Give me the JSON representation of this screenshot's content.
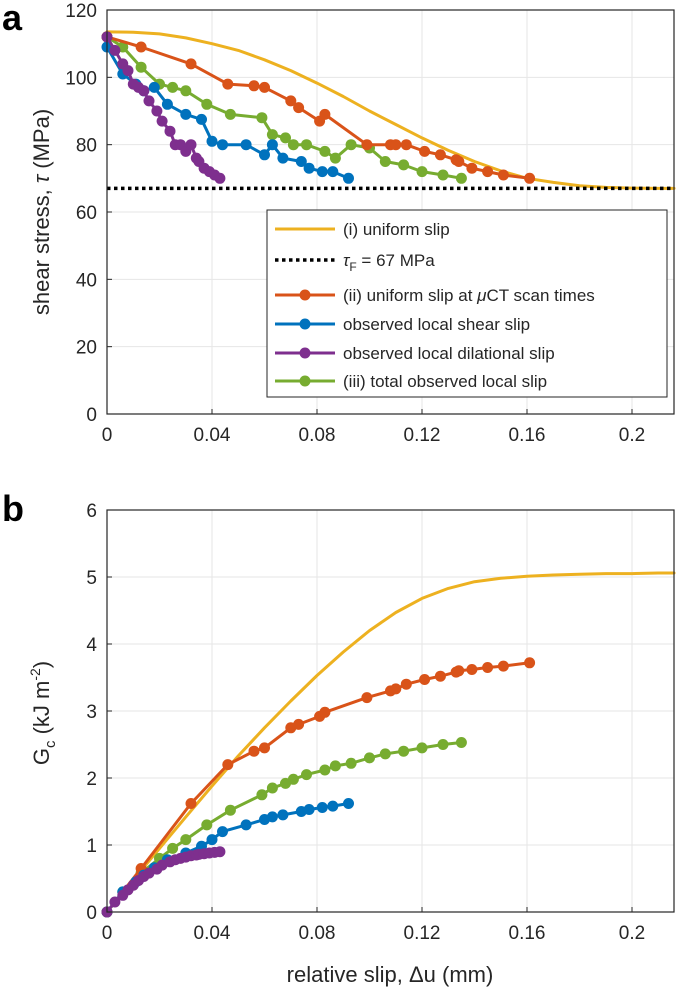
{
  "figure": {
    "panels": [
      "a",
      "b"
    ]
  },
  "colors": {
    "uniform": "#EDB120",
    "friction": "#000000",
    "uniform_ct": "#D95319",
    "shear": "#0072BD",
    "dilational": "#7E2F8E",
    "total": "#77AC30",
    "grid": "#e6e6e6",
    "axis": "#262626"
  },
  "chart_data": [
    {
      "panel": "a",
      "type": "line",
      "xlabel": "",
      "ylabel_text": "shear stress, ",
      "ylabel_symbol": "τ",
      "ylabel_unit": " (MPa)",
      "xlim": [
        0,
        0.216
      ],
      "ylim": [
        0,
        120
      ],
      "xticks": [
        0,
        0.04,
        0.08,
        0.12,
        0.16,
        0.2
      ],
      "xtick_labels": [
        "0",
        "0.04",
        "0.08",
        "0.12",
        "0.16",
        "0.2"
      ],
      "yticks": [
        0,
        20,
        40,
        60,
        80,
        100,
        120
      ],
      "ytick_labels": [
        "0",
        "20",
        "40",
        "60",
        "80",
        "100",
        "120"
      ],
      "grid": true,
      "legend": {
        "placement": "bottom-right",
        "entries": [
          {
            "series": "uniform",
            "label": "(i) uniform slip"
          },
          {
            "series": "friction",
            "label_symbol": "τ",
            "label_sub": "F",
            "label_rest": " = 67 MPa"
          },
          {
            "series": "uniform_ct",
            "label_pre": "(ii) uniform slip at ",
            "label_mu": "μ",
            "label_post": "CT scan times"
          },
          {
            "series": "shear",
            "label": "observed local shear slip"
          },
          {
            "series": "dilational",
            "label": "observed local dilational slip"
          },
          {
            "series": "total",
            "label": "(iii) total observed local slip"
          }
        ]
      },
      "series": {
        "uniform": {
          "style": "line",
          "x": [
            0,
            0.01,
            0.02,
            0.03,
            0.04,
            0.05,
            0.06,
            0.07,
            0.08,
            0.09,
            0.1,
            0.11,
            0.12,
            0.13,
            0.14,
            0.15,
            0.16,
            0.17,
            0.18,
            0.19,
            0.2,
            0.21,
            0.216
          ],
          "y": [
            113.5,
            113.4,
            112.9,
            111.7,
            110.0,
            108.0,
            105.2,
            102.0,
            98.3,
            94.3,
            90.0,
            86.0,
            82.0,
            78.3,
            75.0,
            72.2,
            70.0,
            68.8,
            67.8,
            67.3,
            67.1,
            67.0,
            67.0
          ]
        },
        "friction": {
          "style": "dotted",
          "x": [
            0,
            0.216
          ],
          "y": [
            67,
            67
          ]
        },
        "uniform_ct": {
          "style": "line-marker",
          "x": [
            0,
            0.013,
            0.032,
            0.046,
            0.056,
            0.06,
            0.07,
            0.073,
            0.081,
            0.083,
            0.099,
            0.108,
            0.11,
            0.114,
            0.121,
            0.127,
            0.133,
            0.134,
            0.139,
            0.145,
            0.151,
            0.161
          ],
          "y": [
            112,
            109,
            104,
            98,
            97.5,
            97,
            93,
            91,
            87,
            89,
            80,
            80,
            80,
            80,
            78,
            77,
            75.5,
            75,
            73,
            72,
            71,
            70
          ]
        },
        "shear": {
          "style": "line-marker",
          "x": [
            0,
            0.006,
            0.011,
            0.014,
            0.018,
            0.023,
            0.03,
            0.036,
            0.04,
            0.044,
            0.053,
            0.06,
            0.063,
            0.067,
            0.074,
            0.077,
            0.082,
            0.086,
            0.092
          ],
          "y": [
            109,
            101,
            98,
            96,
            97,
            92,
            89,
            87.5,
            81,
            80,
            80,
            77,
            80,
            76,
            75,
            73,
            72,
            72,
            70
          ]
        },
        "dilational": {
          "style": "line-marker",
          "x": [
            0,
            0.003,
            0.006,
            0.008,
            0.01,
            0.012,
            0.014,
            0.016,
            0.019,
            0.021,
            0.024,
            0.026,
            0.028,
            0.03,
            0.032,
            0.034,
            0.035,
            0.037,
            0.039,
            0.041,
            0.043
          ],
          "y": [
            112,
            108,
            104,
            102,
            98,
            97,
            96,
            93,
            90,
            87,
            84,
            80,
            80,
            78,
            80,
            76,
            75,
            73,
            72,
            71,
            70
          ]
        },
        "total": {
          "style": "line-marker",
          "x": [
            0,
            0.006,
            0.013,
            0.02,
            0.025,
            0.03,
            0.038,
            0.047,
            0.059,
            0.063,
            0.068,
            0.071,
            0.076,
            0.083,
            0.087,
            0.093,
            0.1,
            0.106,
            0.113,
            0.12,
            0.128,
            0.135
          ],
          "y": [
            112,
            109,
            103,
            98,
            97,
            96,
            92,
            89,
            88,
            83,
            82,
            80,
            80,
            78,
            76,
            80,
            79,
            75,
            74,
            72,
            71,
            70
          ]
        }
      }
    },
    {
      "panel": "b",
      "type": "line",
      "xlabel_text": "relative slip, ",
      "xlabel_symbol": "Δ",
      "xlabel_unit": "u (mm)",
      "ylabel_main": "G",
      "ylabel_sub": "c",
      "ylabel_unit": " (kJ m",
      "ylabel_sup": "-2",
      "ylabel_close": ")",
      "xlim": [
        0,
        0.216
      ],
      "ylim": [
        0,
        6
      ],
      "xticks": [
        0,
        0.04,
        0.08,
        0.12,
        0.16,
        0.2
      ],
      "xtick_labels": [
        "0",
        "0.04",
        "0.08",
        "0.12",
        "0.16",
        "0.2"
      ],
      "yticks": [
        0,
        1,
        2,
        3,
        4,
        5,
        6
      ],
      "ytick_labels": [
        "0",
        "1",
        "2",
        "3",
        "4",
        "5",
        "6"
      ],
      "grid": true,
      "series": {
        "uniform": {
          "style": "line",
          "x": [
            0,
            0.01,
            0.02,
            0.03,
            0.04,
            0.05,
            0.06,
            0.07,
            0.08,
            0.09,
            0.1,
            0.11,
            0.12,
            0.13,
            0.14,
            0.15,
            0.16,
            0.17,
            0.18,
            0.19,
            0.2,
            0.21,
            0.216
          ],
          "y": [
            0,
            0.48,
            0.95,
            1.42,
            1.88,
            2.33,
            2.75,
            3.15,
            3.53,
            3.88,
            4.2,
            4.47,
            4.68,
            4.83,
            4.93,
            4.98,
            5.01,
            5.03,
            5.04,
            5.05,
            5.05,
            5.06,
            5.06
          ]
        },
        "uniform_ct": {
          "style": "line-marker",
          "x": [
            0,
            0.013,
            0.032,
            0.046,
            0.056,
            0.06,
            0.07,
            0.073,
            0.081,
            0.083,
            0.099,
            0.108,
            0.11,
            0.114,
            0.121,
            0.127,
            0.133,
            0.134,
            0.139,
            0.145,
            0.151,
            0.161
          ],
          "y": [
            0,
            0.65,
            1.62,
            2.2,
            2.4,
            2.45,
            2.75,
            2.8,
            2.92,
            2.98,
            3.2,
            3.3,
            3.33,
            3.4,
            3.47,
            3.52,
            3.58,
            3.6,
            3.62,
            3.65,
            3.67,
            3.72
          ]
        },
        "shear": {
          "style": "line-marker",
          "x": [
            0,
            0.006,
            0.011,
            0.014,
            0.018,
            0.023,
            0.03,
            0.036,
            0.04,
            0.044,
            0.053,
            0.06,
            0.063,
            0.067,
            0.074,
            0.077,
            0.082,
            0.086,
            0.092
          ],
          "y": [
            0,
            0.3,
            0.45,
            0.55,
            0.66,
            0.78,
            0.88,
            0.98,
            1.08,
            1.2,
            1.3,
            1.38,
            1.42,
            1.45,
            1.5,
            1.53,
            1.56,
            1.58,
            1.62
          ]
        },
        "dilational": {
          "style": "line-marker",
          "x": [
            0,
            0.003,
            0.006,
            0.008,
            0.01,
            0.012,
            0.014,
            0.016,
            0.019,
            0.021,
            0.024,
            0.026,
            0.028,
            0.03,
            0.032,
            0.034,
            0.035,
            0.037,
            0.039,
            0.041,
            0.043
          ],
          "y": [
            0,
            0.15,
            0.25,
            0.33,
            0.4,
            0.47,
            0.53,
            0.58,
            0.64,
            0.7,
            0.75,
            0.78,
            0.8,
            0.82,
            0.84,
            0.85,
            0.86,
            0.87,
            0.88,
            0.89,
            0.9
          ]
        },
        "total": {
          "style": "line-marker",
          "x": [
            0,
            0.006,
            0.013,
            0.02,
            0.025,
            0.03,
            0.038,
            0.047,
            0.059,
            0.063,
            0.068,
            0.071,
            0.076,
            0.083,
            0.087,
            0.093,
            0.1,
            0.106,
            0.113,
            0.12,
            0.128,
            0.135
          ],
          "y": [
            0,
            0.3,
            0.58,
            0.8,
            0.95,
            1.08,
            1.3,
            1.52,
            1.75,
            1.85,
            1.92,
            1.98,
            2.05,
            2.12,
            2.18,
            2.22,
            2.3,
            2.36,
            2.4,
            2.45,
            2.5,
            2.53
          ]
        }
      }
    }
  ]
}
